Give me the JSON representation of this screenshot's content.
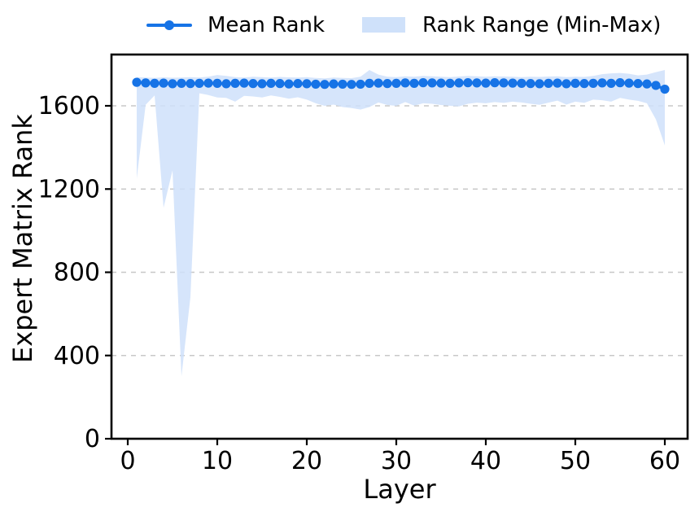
{
  "figure": {
    "xlabel": "Layer",
    "ylabel": "Expert Matrix Rank",
    "legend": {
      "mean_label": "Mean Rank",
      "range_label": "Rank Range (Min-Max)"
    }
  },
  "chart_data": {
    "type": "line",
    "title": "",
    "xlabel": "Layer",
    "ylabel": "Expert Matrix Rank",
    "xticks": [
      0,
      10,
      20,
      30,
      40,
      50,
      60
    ],
    "yticks": [
      0,
      400,
      800,
      1200,
      1600
    ],
    "xlim": [
      -1.8,
      62.5
    ],
    "ylim": [
      0,
      1846
    ],
    "grid": "horizontal-dashed",
    "legend_position": "top-center-above-axes",
    "line_color": "#1673e6",
    "band_color": "#cfe1fa",
    "grid_color": "#c8c8c8",
    "spine_color": "#000000",
    "x": [
      1,
      2,
      3,
      4,
      5,
      6,
      7,
      8,
      9,
      10,
      11,
      12,
      13,
      14,
      15,
      16,
      17,
      18,
      19,
      20,
      21,
      22,
      23,
      24,
      25,
      26,
      27,
      28,
      29,
      30,
      31,
      32,
      33,
      34,
      35,
      36,
      37,
      38,
      39,
      40,
      41,
      42,
      43,
      44,
      45,
      46,
      47,
      48,
      49,
      50,
      51,
      52,
      53,
      54,
      55,
      56,
      57,
      58,
      59,
      60
    ],
    "series": [
      {
        "name": "Mean Rank",
        "style": "line-with-circle-markers",
        "values": [
          1713,
          1710,
          1708,
          1709,
          1706,
          1708,
          1707,
          1708,
          1709,
          1708,
          1706,
          1708,
          1709,
          1707,
          1706,
          1708,
          1707,
          1705,
          1707,
          1706,
          1704,
          1703,
          1705,
          1704,
          1703,
          1704,
          1708,
          1709,
          1707,
          1708,
          1710,
          1708,
          1711,
          1710,
          1709,
          1708,
          1710,
          1711,
          1710,
          1709,
          1711,
          1710,
          1709,
          1708,
          1707,
          1706,
          1708,
          1709,
          1706,
          1708,
          1707,
          1708,
          1710,
          1708,
          1711,
          1709,
          1707,
          1705,
          1698,
          1680
        ]
      },
      {
        "name": "Rank Range (Min-Max)",
        "style": "filled-band",
        "min": [
          1250,
          1605,
          1650,
          1110,
          1290,
          300,
          680,
          1660,
          1652,
          1640,
          1638,
          1620,
          1648,
          1645,
          1640,
          1650,
          1643,
          1634,
          1641,
          1630,
          1612,
          1600,
          1606,
          1594,
          1589,
          1582,
          1594,
          1616,
          1604,
          1600,
          1618,
          1601,
          1612,
          1610,
          1604,
          1600,
          1597,
          1610,
          1615,
          1612,
          1618,
          1614,
          1620,
          1616,
          1610,
          1605,
          1615,
          1625,
          1606,
          1620,
          1614,
          1630,
          1627,
          1620,
          1638,
          1630,
          1624,
          1612,
          1535,
          1410
        ],
        "max": [
          1738,
          1736,
          1734,
          1737,
          1735,
          1736,
          1738,
          1736,
          1740,
          1748,
          1744,
          1738,
          1736,
          1740,
          1738,
          1736,
          1739,
          1737,
          1736,
          1738,
          1734,
          1732,
          1736,
          1734,
          1733,
          1740,
          1772,
          1750,
          1740,
          1738,
          1742,
          1740,
          1744,
          1742,
          1740,
          1738,
          1741,
          1744,
          1742,
          1740,
          1742,
          1741,
          1740,
          1738,
          1740,
          1739,
          1741,
          1742,
          1738,
          1740,
          1739,
          1744,
          1752,
          1756,
          1758,
          1754,
          1746,
          1750,
          1762,
          1772
        ]
      }
    ]
  }
}
